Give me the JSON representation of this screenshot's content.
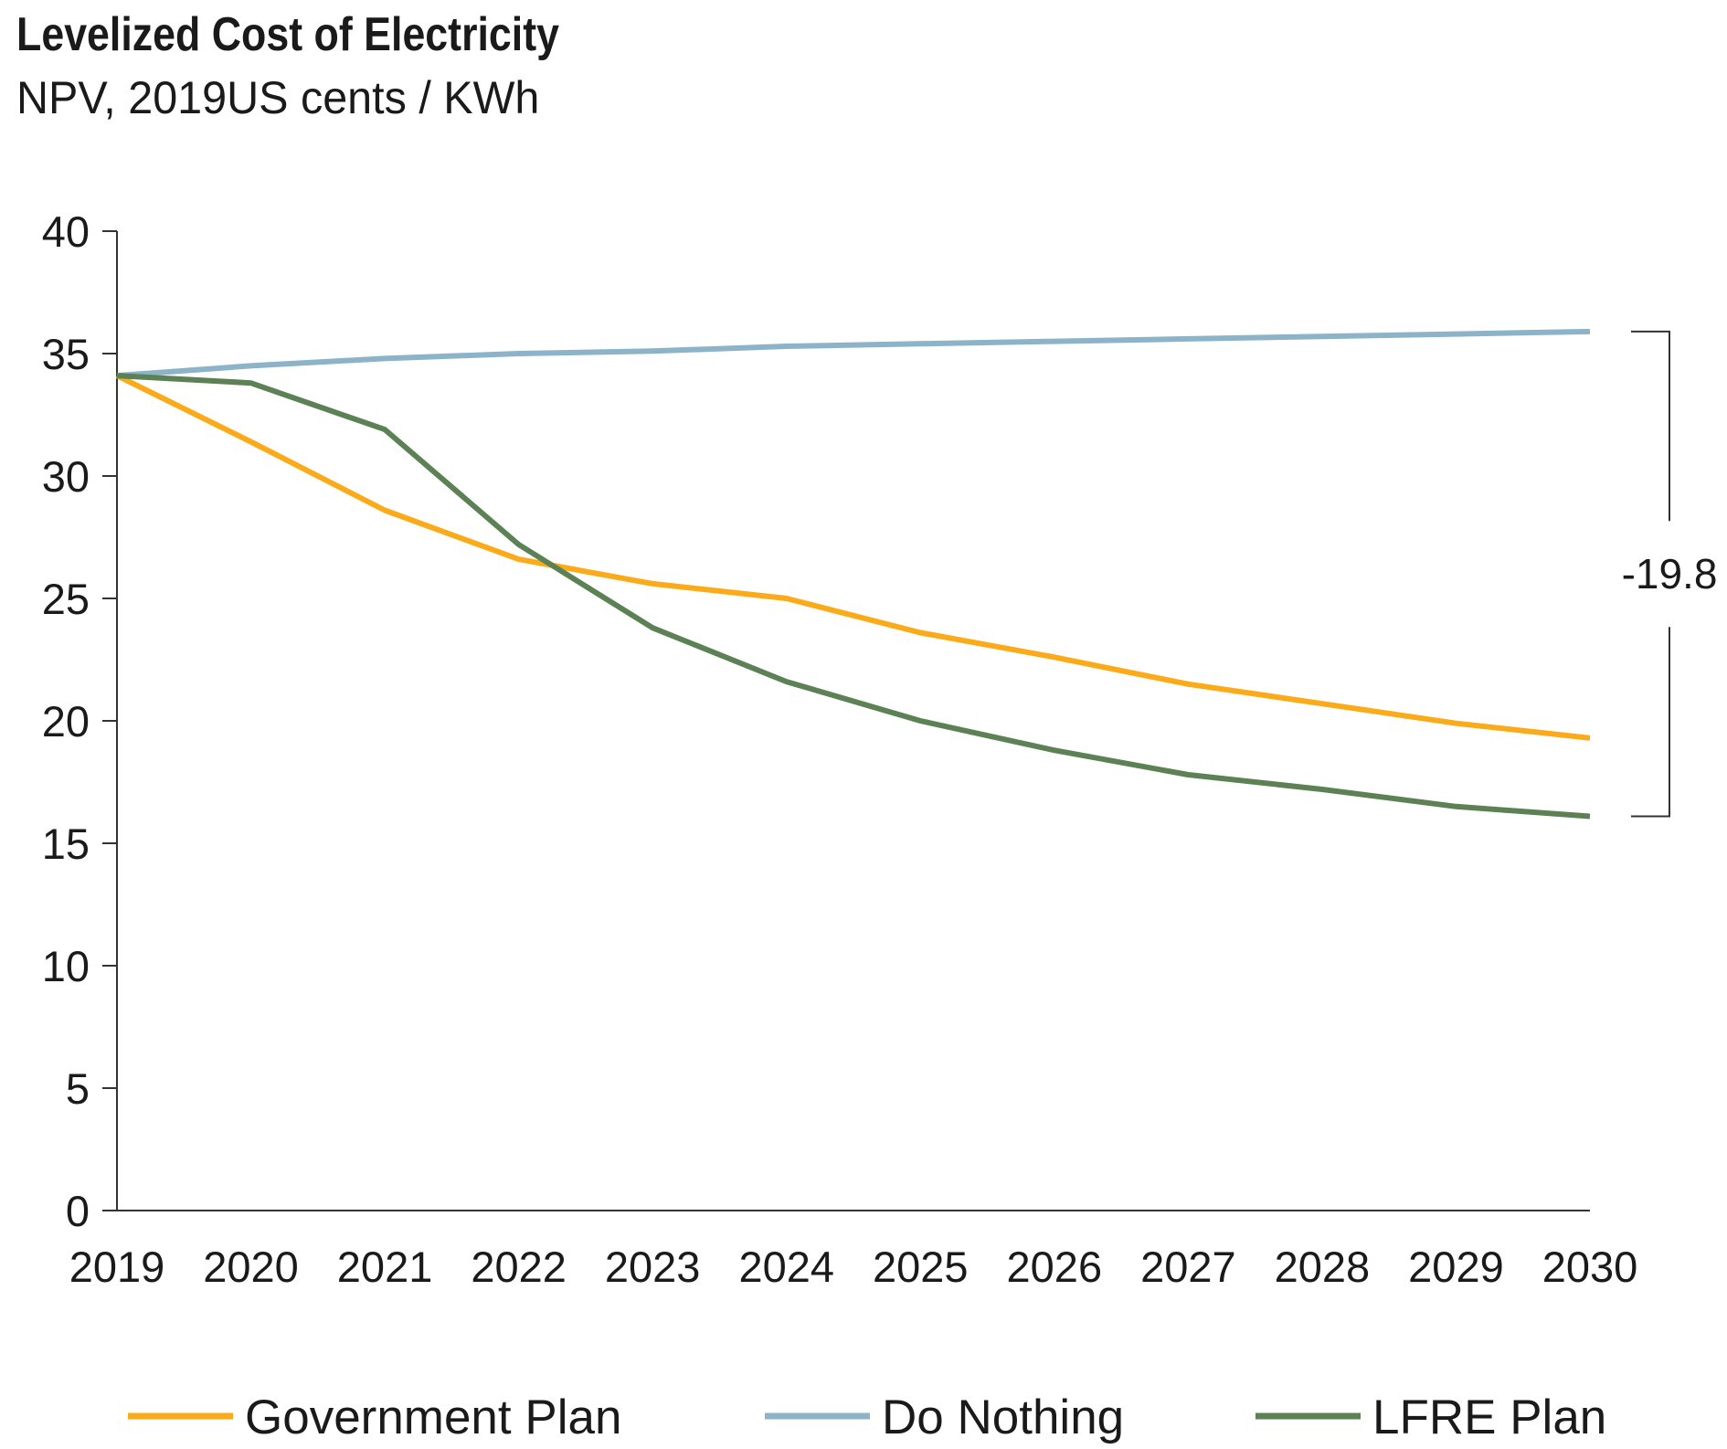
{
  "chart_data": {
    "type": "line",
    "title": "Levelized Cost of Electricity",
    "subtitle": "NPV, 2019US cents / KWh",
    "xlabel": "",
    "ylabel": "",
    "x": [
      "2019",
      "2020",
      "2021",
      "2022",
      "2023",
      "2024",
      "2025",
      "2026",
      "2027",
      "2028",
      "2029",
      "2030"
    ],
    "ylim": [
      0,
      40
    ],
    "yticks": [
      0,
      5,
      10,
      15,
      20,
      25,
      30,
      35,
      40
    ],
    "grid": false,
    "legend_position": "bottom",
    "series": [
      {
        "name": "Government Plan",
        "color": "#fbaa19",
        "values": [
          34.1,
          31.4,
          28.6,
          26.6,
          25.6,
          25.0,
          23.6,
          22.6,
          21.5,
          20.7,
          19.9,
          19.3
        ]
      },
      {
        "name": "Do Nothing",
        "color": "#8db3c9",
        "values": [
          34.1,
          34.5,
          34.8,
          35.0,
          35.1,
          35.3,
          35.4,
          35.5,
          35.6,
          35.7,
          35.8,
          35.9
        ]
      },
      {
        "name": "LFRE Plan",
        "color": "#5b8155",
        "values": [
          34.1,
          33.8,
          31.9,
          27.2,
          23.8,
          21.6,
          20.0,
          18.8,
          17.8,
          17.2,
          16.5,
          16.1
        ]
      }
    ],
    "annotations": [
      {
        "label": "-19.8",
        "x": "2030",
        "y_top": 35.9,
        "y_bottom": 16.1,
        "type": "bracket"
      }
    ]
  }
}
